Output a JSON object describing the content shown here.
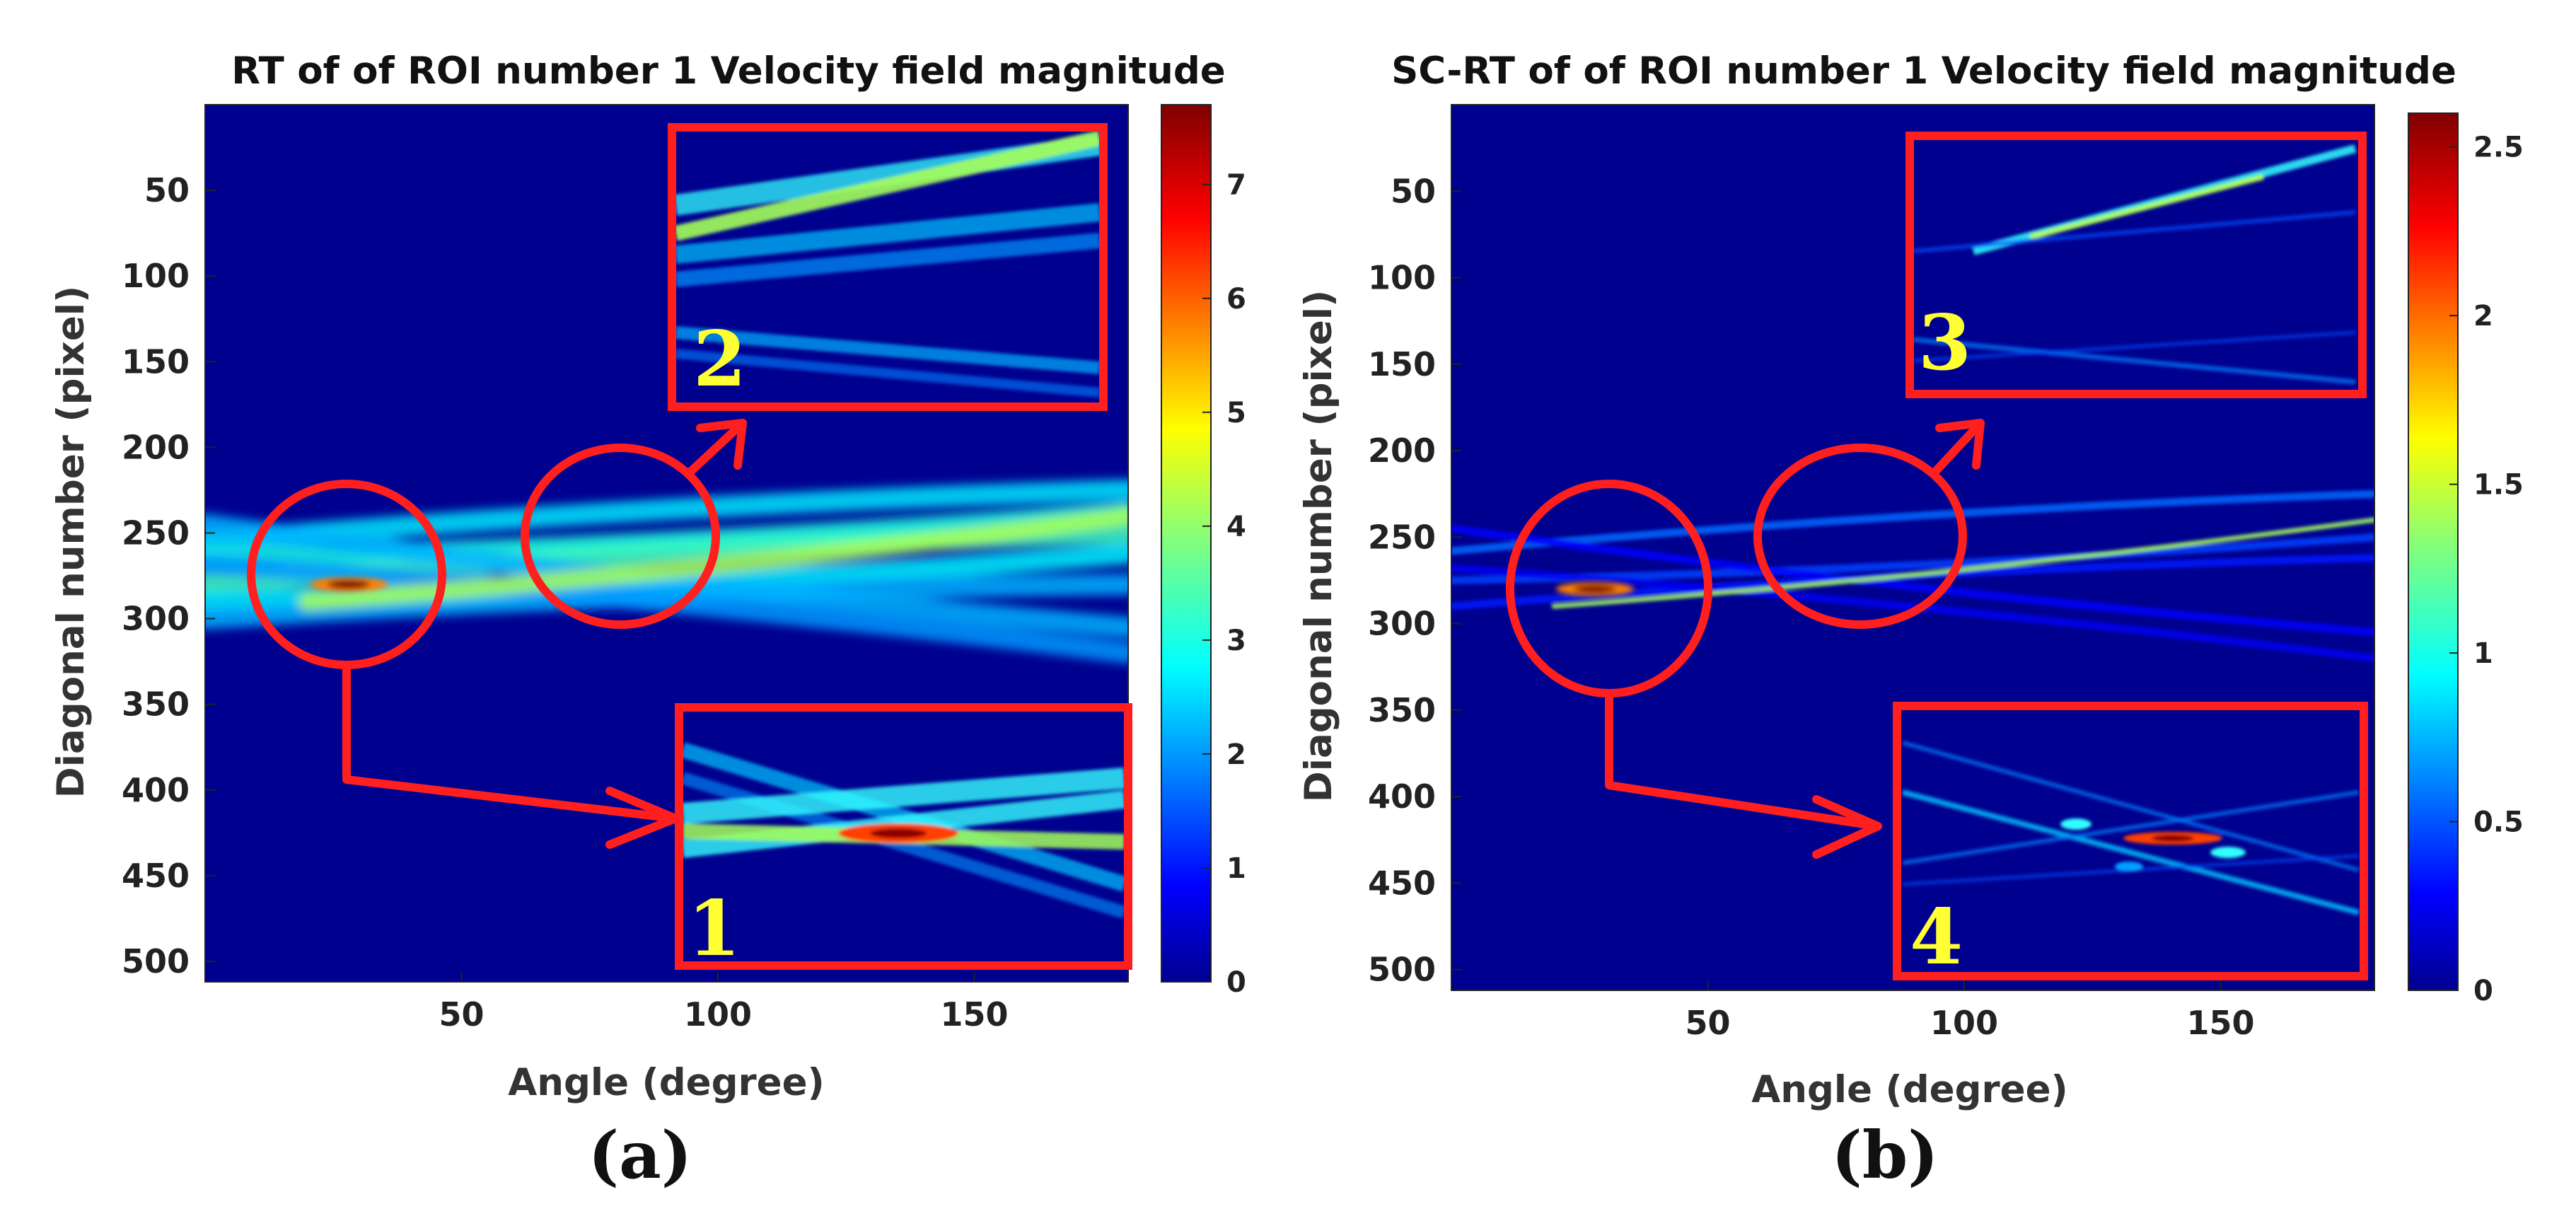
{
  "chart_data": [
    {
      "type": "heatmap",
      "panel_label": "(a)",
      "title": "RT of of ROI number 1 Velocity field magnitude",
      "xlabel": "Angle (degree)",
      "ylabel": "Diagonal number (pixel)",
      "xlim": [
        0,
        180
      ],
      "ylim": [
        512,
        0
      ],
      "xticks": [
        50,
        100,
        150
      ],
      "yticks": [
        50,
        100,
        150,
        200,
        250,
        300,
        350,
        400,
        450,
        500
      ],
      "colormap": "jet",
      "colorbar": {
        "min": 0,
        "max": 7.7,
        "ticks": [
          0,
          1,
          2,
          3,
          4,
          5,
          6,
          7
        ]
      },
      "background_value": 0,
      "peak": {
        "angle": 28,
        "diagonal": 280,
        "value": 7.7
      },
      "bands": [
        {
          "from": [
            0,
            255
          ],
          "to": [
            180,
            225
          ],
          "value": 2.6
        },
        {
          "from": [
            0,
            265
          ],
          "to": [
            180,
            238
          ],
          "value": 3.0
        },
        {
          "from": [
            0,
            280
          ],
          "to": [
            180,
            250
          ],
          "value": 3.3
        },
        {
          "from": [
            0,
            290
          ],
          "to": [
            180,
            262
          ],
          "value": 2.7
        },
        {
          "from": [
            0,
            300
          ],
          "to": [
            180,
            280
          ],
          "value": 2.2
        },
        {
          "from": [
            0,
            245
          ],
          "to": [
            180,
            305
          ],
          "value": 2.2
        },
        {
          "from": [
            0,
            268
          ],
          "to": [
            180,
            320
          ],
          "value": 2.0
        },
        {
          "from": [
            20,
            290
          ],
          "to": [
            180,
            240
          ],
          "value": 4.2
        }
      ],
      "circles": [
        {
          "center": [
            28,
            280
          ],
          "zoom_target": "1"
        },
        {
          "center": [
            80,
            258
          ],
          "zoom_target": "2"
        }
      ],
      "insets": [
        {
          "label": "2",
          "content": "zoom of crossing band near angle 80"
        },
        {
          "label": "1",
          "content": "zoom of peak near angle 28, diagonal 280"
        }
      ]
    },
    {
      "type": "heatmap",
      "panel_label": "(b)",
      "title": "SC-RT of of ROI number 1 Velocity field magnitude",
      "xlabel": "Angle (degree)",
      "ylabel": "Diagonal number (pixel)",
      "xlim": [
        0,
        180
      ],
      "ylim": [
        512,
        0
      ],
      "xticks": [
        50,
        100,
        150
      ],
      "yticks": [
        50,
        100,
        150,
        200,
        250,
        300,
        350,
        400,
        450,
        500
      ],
      "colormap": "jet",
      "colorbar": {
        "min": 0,
        "max": 2.6,
        "ticks": [
          0,
          0.5,
          1,
          1.5,
          2,
          2.5
        ],
        "tick_labels": [
          "0",
          "0.5",
          "1",
          "1.5",
          "2",
          "2.5"
        ]
      },
      "background_value": 0,
      "peak": {
        "angle": 28,
        "diagonal": 280,
        "value": 2.6
      },
      "bands": [
        {
          "from": [
            0,
            258
          ],
          "to": [
            180,
            225
          ],
          "value": 0.55
        },
        {
          "from": [
            0,
            275
          ],
          "to": [
            180,
            250
          ],
          "value": 0.45
        },
        {
          "from": [
            0,
            290
          ],
          "to": [
            180,
            262
          ],
          "value": 0.35
        },
        {
          "from": [
            0,
            245
          ],
          "to": [
            180,
            305
          ],
          "value": 0.3
        },
        {
          "from": [
            0,
            268
          ],
          "to": [
            180,
            320
          ],
          "value": 0.25
        },
        {
          "from": [
            20,
            290
          ],
          "to": [
            180,
            240
          ],
          "value": 1.4
        }
      ],
      "circles": [
        {
          "center": [
            30,
            283
          ],
          "zoom_target": "4"
        },
        {
          "center": [
            80,
            258
          ],
          "zoom_target": "3"
        }
      ],
      "insets": [
        {
          "label": "3",
          "content": "zoom of crossing line near angle 80"
        },
        {
          "label": "4",
          "content": "zoom of peak near angle 28, diagonal 280"
        }
      ]
    }
  ]
}
